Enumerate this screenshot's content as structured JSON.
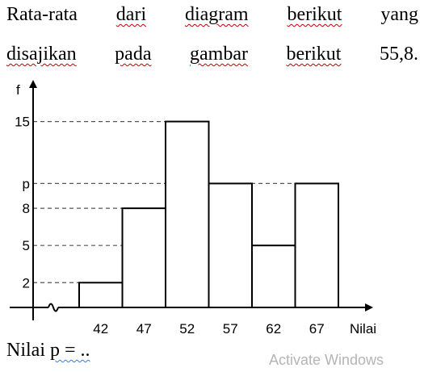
{
  "text": {
    "line1": [
      "Rata-rata",
      "dari",
      "diagram",
      "berikut",
      "yang"
    ],
    "line2": [
      "disajikan",
      "pada",
      "gambar",
      "berikut",
      "55,8."
    ],
    "question": [
      "Nilai",
      "p = .."
    ]
  },
  "watermark": "Activate Windows",
  "chart_data": {
    "type": "bar",
    "subtype": "histogram",
    "categories": [
      "42",
      "47",
      "52",
      "57",
      "62",
      "67"
    ],
    "values": [
      2,
      8,
      15,
      "p",
      5,
      "p"
    ],
    "value_for_drawing_p": 10,
    "xlabel": "Nilai",
    "ylabel": "f",
    "y_ticks": [
      "2",
      "5",
      "8",
      "p",
      "15"
    ],
    "ylim": [
      0,
      16
    ],
    "grid": false,
    "dashed_reference_lines": true,
    "axis_break": true
  }
}
